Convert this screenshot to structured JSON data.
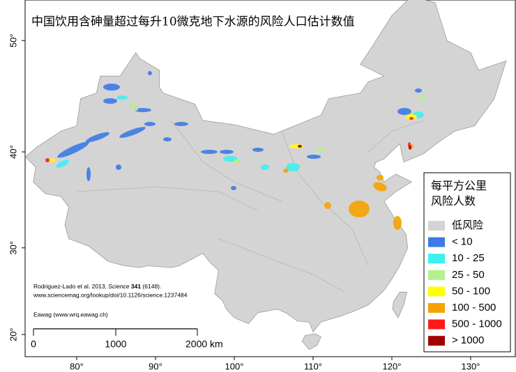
{
  "map": {
    "title": "中国饮用含砷量超过每升10微克地下水源的风险人口估计数值",
    "legend": {
      "title": [
        "每平方公里",
        "风险人数"
      ],
      "items": [
        {
          "label": "低风险",
          "color": "#d4d4d4"
        },
        {
          "label": "< 10",
          "color": "#3b7ae8"
        },
        {
          "label": "10 - 25",
          "color": "#3ef0f0"
        },
        {
          "label": "25 - 50",
          "color": "#b4f08c"
        },
        {
          "label": "50 - 100",
          "color": "#ffff00"
        },
        {
          "label": "100 - 500",
          "color": "#f5a300"
        },
        {
          "label": "500 - 1000",
          "color": "#ff1a1a"
        },
        {
          "label": "> 1000",
          "color": "#a30000"
        }
      ]
    },
    "x_ticks": [
      {
        "value": 80,
        "label": "80°"
      },
      {
        "value": 90,
        "label": "90°"
      },
      {
        "value": 100,
        "label": "100°"
      },
      {
        "value": 110,
        "label": "110°"
      },
      {
        "value": 120,
        "label": "120°"
      },
      {
        "value": 130,
        "label": "130°"
      }
    ],
    "y_ticks": [
      {
        "value": 20,
        "label": "20°"
      },
      {
        "value": 30,
        "label": "30°"
      },
      {
        "value": 40,
        "label": "40°"
      },
      {
        "value": 50,
        "label": "50°"
      }
    ],
    "scale_bar": {
      "labels": [
        "0",
        "1000",
        "2000 km"
      ]
    },
    "credits": {
      "citation": [
        "Rodriguez-Lado et al. 2013, ",
        "Science",
        " 341",
        " (6148)."
      ],
      "url": "www.sciencemag.org/lookup/doi/10.1126/science.1237484",
      "org": "Eawag (www.wrq.eawag.ch)"
    }
  }
}
